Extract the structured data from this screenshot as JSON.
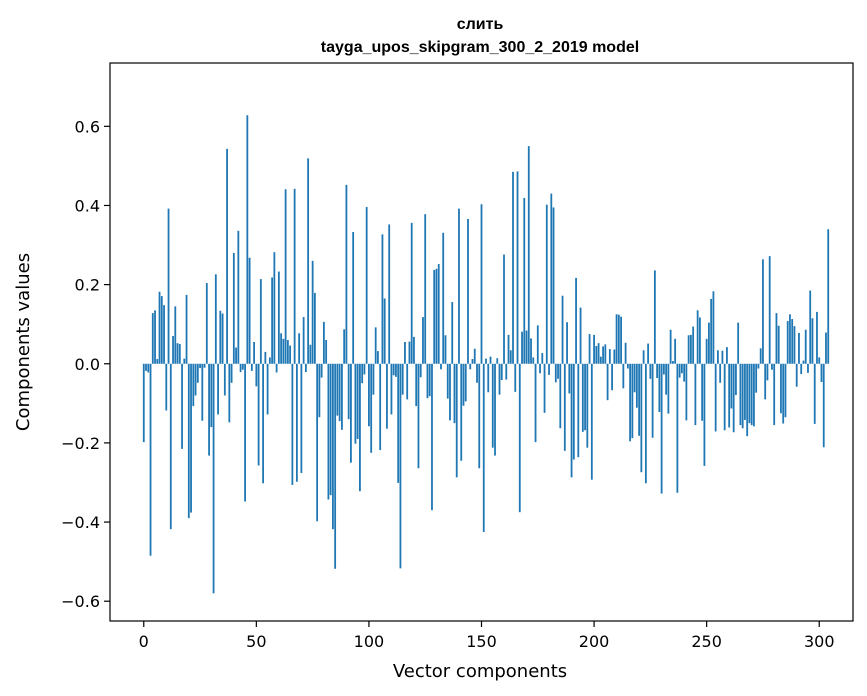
{
  "chart_data": {
    "type": "bar",
    "title_line1": "слить",
    "title_line2": "tayga_upos_skipgram_300_2_2019 model",
    "xlabel": "Vector components",
    "ylabel": "Components values",
    "xlim": [
      -15,
      315
    ],
    "ylim": [
      -0.65,
      0.76
    ],
    "xticks": [
      0,
      50,
      100,
      150,
      200,
      250,
      300
    ],
    "xtick_labels": [
      "0",
      "50",
      "100",
      "150",
      "200",
      "250",
      "300"
    ],
    "yticks": [
      -0.6,
      -0.4,
      -0.2,
      0.0,
      0.2,
      0.4,
      0.6
    ],
    "ytick_labels": [
      "−0.6",
      "−0.4",
      "−0.2",
      "0.0",
      "0.2",
      "0.4",
      "0.6"
    ],
    "grid": false,
    "bar_color": "#1f77b4",
    "values": [
      -0.198,
      -0.018,
      -0.022,
      -0.485,
      0.128,
      0.135,
      0.012,
      0.182,
      0.171,
      0.148,
      -0.118,
      0.392,
      -0.418,
      0.07,
      0.145,
      0.052,
      0.05,
      -0.215,
      0.013,
      0.174,
      -0.39,
      -0.376,
      -0.107,
      -0.08,
      -0.048,
      -0.011,
      -0.144,
      -0.01,
      0.204,
      -0.232,
      -0.16,
      -0.58,
      0.226,
      -0.128,
      0.134,
      0.127,
      -0.08,
      0.543,
      -0.148,
      -0.048,
      0.28,
      0.041,
      0.336,
      -0.021,
      -0.015,
      -0.348,
      0.628,
      0.268,
      -0.018,
      0.055,
      -0.057,
      -0.257,
      0.214,
      -0.302,
      0.03,
      -0.128,
      0.016,
      0.218,
      0.282,
      -0.022,
      0.233,
      0.077,
      0.063,
      0.441,
      0.06,
      0.046,
      -0.306,
      0.442,
      -0.298,
      0.077,
      -0.276,
      0.118,
      -0.021,
      0.519,
      0.048,
      0.26,
      0.179,
      -0.398,
      -0.135,
      -0.035,
      0.106,
      0.06,
      -0.343,
      -0.332,
      -0.418,
      -0.518,
      -0.131,
      -0.145,
      -0.167,
      0.087,
      0.452,
      -0.14,
      -0.25,
      0.333,
      -0.202,
      -0.19,
      -0.322,
      -0.049,
      -0.027,
      0.396,
      -0.158,
      -0.225,
      -0.078,
      0.092,
      0.032,
      -0.218,
      0.327,
      0.165,
      -0.164,
      0.352,
      -0.128,
      -0.029,
      -0.033,
      -0.301,
      -0.517,
      -0.078,
      0.055,
      -0.09,
      0.056,
      0.356,
      0.068,
      -0.107,
      -0.264,
      -0.034,
      0.118,
      0.378,
      -0.087,
      -0.082,
      -0.37,
      0.237,
      0.24,
      0.252,
      -0.014,
      0.331,
      0.072,
      -0.088,
      -0.143,
      0.156,
      -0.15,
      -0.287,
      0.392,
      -0.245,
      -0.106,
      -0.095,
      0.366,
      -0.014,
      0.012,
      0.038,
      -0.048,
      -0.264,
      0.403,
      -0.425,
      0.013,
      -0.072,
      0.018,
      -0.212,
      -0.232,
      0.014,
      -0.078,
      -0.041,
      0.276,
      -0.04,
      0.073,
      0.034,
      0.485,
      -0.071,
      0.486,
      -0.375,
      0.081,
      0.419,
      0.084,
      0.55,
      0.064,
      0.016,
      -0.198,
      0.097,
      -0.024,
      0.027,
      -0.124,
      0.402,
      -0.028,
      0.43,
      0.395,
      -0.047,
      -0.038,
      -0.163,
      0.172,
      -0.22,
      0.105,
      -0.075,
      -0.287,
      -0.242,
      0.217,
      -0.236,
      0.142,
      -0.172,
      -0.168,
      -0.212,
      0.075,
      -0.293,
      0.073,
      0.045,
      0.052,
      0.018,
      0.044,
      0.049,
      -0.092,
      0.037,
      -0.067,
      0.036,
      0.125,
      0.124,
      0.119,
      -0.062,
      0.053,
      -0.012,
      -0.196,
      -0.188,
      -0.072,
      -0.111,
      -0.182,
      -0.274,
      0.034,
      -0.302,
      0.051,
      -0.038,
      -0.187,
      0.236,
      -0.036,
      -0.122,
      -0.328,
      -0.027,
      -0.078,
      -0.126,
      0.086,
      0.007,
      0.063,
      -0.326,
      -0.035,
      -0.024,
      -0.045,
      -0.143,
      0.072,
      0.073,
      0.094,
      -0.155,
      0.135,
      0.117,
      -0.144,
      -0.258,
      0.063,
      0.104,
      0.164,
      0.183,
      -0.171,
      0.034,
      -0.048,
      0.033,
      -0.168,
      0.042,
      -0.161,
      -0.113,
      -0.173,
      -0.079,
      0.104,
      -0.155,
      -0.163,
      -0.142,
      -0.183,
      -0.15,
      -0.155,
      -0.158,
      -0.073,
      -0.012,
      0.039,
      0.264,
      -0.09,
      -0.042,
      0.272,
      -0.015,
      -0.155,
      0.128,
      0.096,
      -0.125,
      -0.151,
      -0.135,
      0.108,
      0.125,
      0.113,
      0.095,
      -0.058,
      0.078,
      -0.026,
      0.008,
      0.086,
      -0.023,
      0.185,
      0.115,
      -0.152,
      0.131,
      0.016,
      -0.046,
      -0.211,
      0.079,
      0.34
    ]
  }
}
